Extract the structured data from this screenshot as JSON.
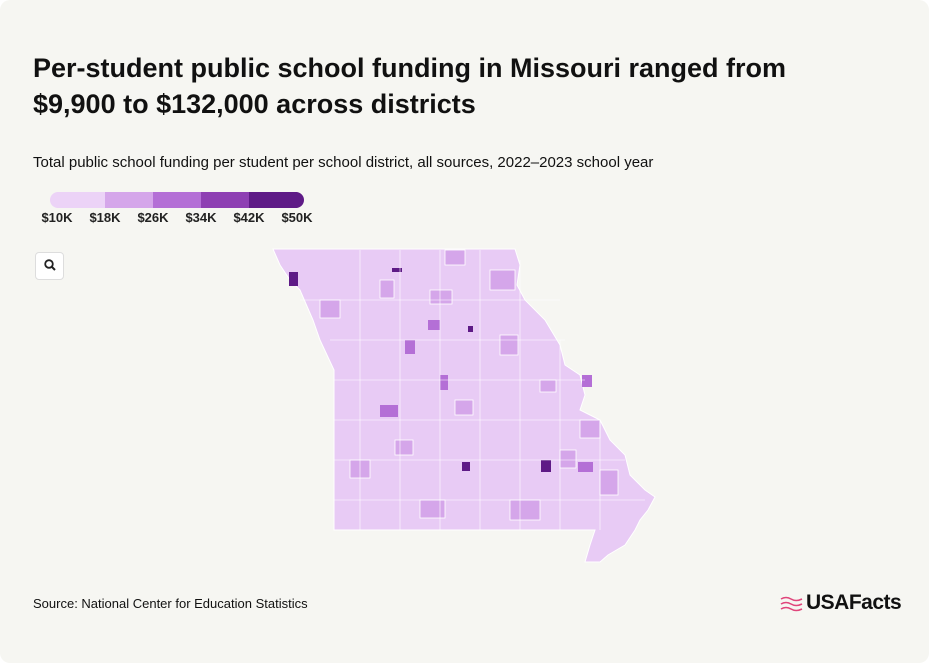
{
  "header": {
    "title_lines": [
      "Per-student public school funding in Missouri ranged from",
      "$9,900 to $132,000 across districts"
    ],
    "subtitle": "Total public school funding per student per school district, all sources, 2022–2023 school year"
  },
  "legend": {
    "colors": [
      "#ecd3f7",
      "#d5a6ea",
      "#b46fd6",
      "#8e3fb3",
      "#5e1a86"
    ],
    "labels": [
      "$10K",
      "$18K",
      "$26K",
      "$34K",
      "$42K",
      "$50K"
    ]
  },
  "footer": {
    "source": "Source: National Center for Education Statistics",
    "logo": "USAFacts"
  }
}
